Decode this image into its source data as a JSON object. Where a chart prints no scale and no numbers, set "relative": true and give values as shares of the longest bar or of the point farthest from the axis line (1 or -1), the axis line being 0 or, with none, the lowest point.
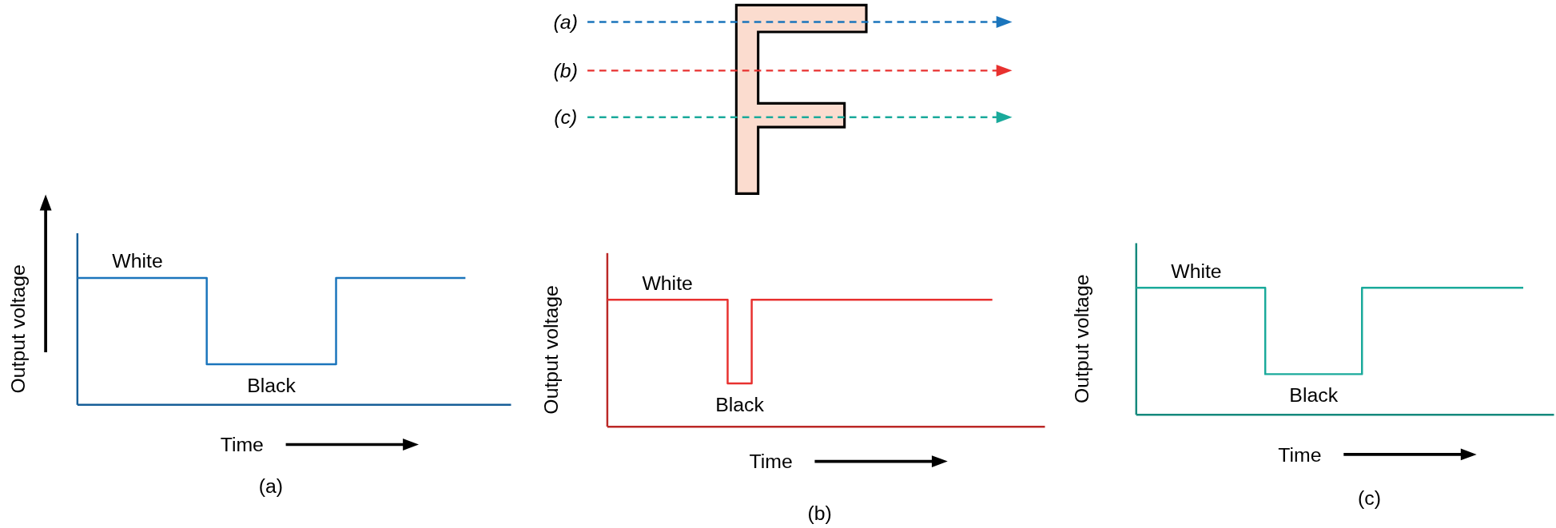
{
  "chart_data": [
    {
      "type": "other",
      "annotations": [
        "(a)",
        "(b)",
        "(c)"
      ]
    },
    {
      "type": "step",
      "title": "(a)",
      "xlabel": "Time",
      "ylabel": "Output voltage",
      "relative": true,
      "categories": [
        null,
        null,
        null,
        null
      ],
      "series": [
        {
          "color": "#1b75bc",
          "values": [
            1,
            0.32,
            1,
            1
          ]
        }
      ],
      "annotations": [
        {
          "text": "White",
          "y": 1
        },
        {
          "text": "Black",
          "y": 0.32
        }
      ]
    },
    {
      "type": "step",
      "title": "(b)",
      "xlabel": "Time",
      "ylabel": "Output voltage",
      "relative": true,
      "categories": [
        null,
        null,
        null,
        null,
        null,
        null,
        null,
        null,
        null,
        null,
        null,
        null,
        null,
        null,
        null,
        null,
        null
      ],
      "series": [
        {
          "color": "#e8312f",
          "values": [
            1,
            1,
            1,
            1,
            1,
            0.34,
            1,
            1,
            1,
            1,
            1,
            1,
            1,
            1,
            1,
            1,
            1
          ]
        }
      ],
      "annotations": [
        {
          "text": "White",
          "y": 1
        },
        {
          "text": "Black",
          "y": 0.34
        }
      ]
    },
    {
      "type": "step",
      "title": "(c)",
      "xlabel": "Time",
      "ylabel": "Output voltage",
      "relative": true,
      "categories": [
        null,
        null,
        null,
        null,
        null,
        null,
        null,
        null,
        null,
        null,
        null,
        null,
        null
      ],
      "series": [
        {
          "color": "#1aaa9b",
          "values": [
            1,
            1,
            1,
            1,
            0.32,
            0.32,
            0.32,
            1,
            1,
            1,
            1,
            1,
            1
          ]
        }
      ],
      "annotations": [
        {
          "text": "White",
          "y": 1
        },
        {
          "text": "Black",
          "y": 0.32
        }
      ]
    }
  ]
}
